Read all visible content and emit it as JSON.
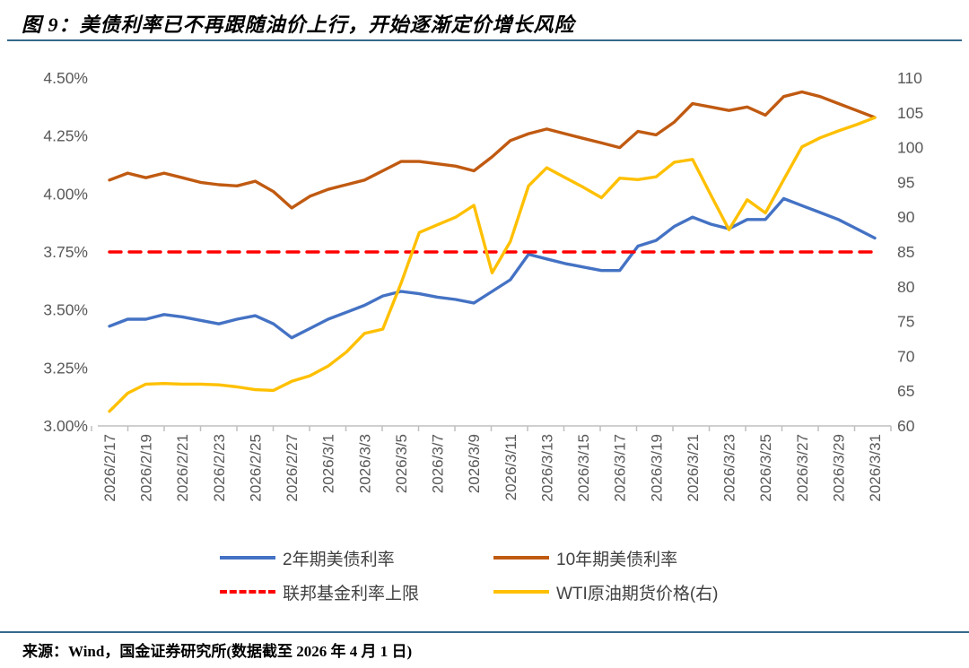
{
  "header": {
    "title": "图 9：美债利率已不再跟随油价上行，开始逐渐定价增长风险"
  },
  "footer": {
    "source": "来源：Wind，国金证券研究所(数据截至 2026 年 4 月 1 日)"
  },
  "colors": {
    "blue": "#4472C4",
    "brown": "#C05A11",
    "yellow": "#FFC000",
    "red": "#FF0000",
    "rule": "#35698C",
    "axis_text": "#595959",
    "axis_line": "#BFBFBF"
  },
  "chart_data": {
    "type": "line",
    "title": "",
    "grid": false,
    "legend_position": "bottom",
    "left_axis": {
      "min": 3.0,
      "max": 4.5,
      "step": 0.25,
      "tick_labels": [
        "3.00%",
        "3.25%",
        "3.50%",
        "3.75%",
        "4.00%",
        "4.25%",
        "4.50%"
      ]
    },
    "right_axis": {
      "min": 60,
      "max": 110,
      "step": 5,
      "tick_labels": [
        "60",
        "65",
        "70",
        "75",
        "80",
        "85",
        "90",
        "95",
        "100",
        "105",
        "110"
      ]
    },
    "x_tick_labels": [
      "2026/2/17",
      "2026/2/19",
      "2026/2/21",
      "2026/2/23",
      "2026/2/25",
      "2026/2/27",
      "2026/3/1",
      "2026/3/3",
      "2026/3/5",
      "2026/3/7",
      "2026/3/9",
      "2026/3/11",
      "2026/3/13",
      "2026/3/15",
      "2026/3/17",
      "2026/3/19",
      "2026/3/21",
      "2026/3/23",
      "2026/3/25",
      "2026/3/27",
      "2026/3/29",
      "2026/3/31"
    ],
    "x": [
      "2026/2/17",
      "2026/2/18",
      "2026/2/19",
      "2026/2/20",
      "2026/2/21",
      "2026/2/22",
      "2026/2/23",
      "2026/2/24",
      "2026/2/25",
      "2026/2/26",
      "2026/2/27",
      "2026/2/28",
      "2026/3/1",
      "2026/3/2",
      "2026/3/3",
      "2026/3/4",
      "2026/3/5",
      "2026/3/6",
      "2026/3/7",
      "2026/3/8",
      "2026/3/9",
      "2026/3/10",
      "2026/3/11",
      "2026/3/12",
      "2026/3/13",
      "2026/3/14",
      "2026/3/15",
      "2026/3/16",
      "2026/3/17",
      "2026/3/18",
      "2026/3/19",
      "2026/3/20",
      "2026/3/21",
      "2026/3/22",
      "2026/3/23",
      "2026/3/24",
      "2026/3/25",
      "2026/3/26",
      "2026/3/27",
      "2026/3/28",
      "2026/3/29",
      "2026/3/30",
      "2026/3/31"
    ],
    "series": [
      {
        "name": "2年期美债利率",
        "axis": "left",
        "color_key": "blue",
        "style": "solid",
        "values": [
          3.43,
          3.46,
          3.46,
          3.48,
          3.47,
          3.455,
          3.44,
          3.46,
          3.475,
          3.44,
          3.38,
          3.42,
          3.46,
          3.49,
          3.52,
          3.56,
          3.58,
          3.57,
          3.555,
          3.545,
          3.53,
          3.58,
          3.63,
          3.74,
          3.72,
          3.7,
          3.685,
          3.67,
          3.67,
          3.775,
          3.8,
          3.86,
          3.9,
          3.87,
          3.85,
          3.89,
          3.89,
          3.98,
          3.95,
          3.92,
          3.89,
          3.85,
          3.81
        ]
      },
      {
        "name": "10年期美债利率",
        "axis": "left",
        "color_key": "brown",
        "style": "solid",
        "values": [
          4.06,
          4.09,
          4.07,
          4.09,
          4.07,
          4.05,
          4.04,
          4.035,
          4.055,
          4.01,
          3.94,
          3.99,
          4.02,
          4.04,
          4.06,
          4.1,
          4.14,
          4.14,
          4.13,
          4.12,
          4.1,
          4.16,
          4.23,
          4.26,
          4.28,
          4.26,
          4.24,
          4.22,
          4.2,
          4.27,
          4.255,
          4.31,
          4.39,
          4.375,
          4.36,
          4.375,
          4.34,
          4.42,
          4.44,
          4.42,
          4.39,
          4.36,
          4.33
        ]
      },
      {
        "name": "联邦基金利率上限",
        "axis": "left",
        "color_key": "red",
        "style": "dashed",
        "values": 3.75
      },
      {
        "name": "WTI原油期货价格(右)",
        "axis": "right",
        "color_key": "yellow",
        "style": "solid",
        "values": [
          62.1,
          64.7,
          66.0,
          66.1,
          66.0,
          66.0,
          65.9,
          65.6,
          65.2,
          65.1,
          66.4,
          67.2,
          68.6,
          70.6,
          73.3,
          73.9,
          80.5,
          87.8,
          88.9,
          90.0,
          91.7,
          82.0,
          86.5,
          94.5,
          97.1,
          95.7,
          94.3,
          92.8,
          95.6,
          95.4,
          95.8,
          97.9,
          98.3,
          93.2,
          88.2,
          92.5,
          90.6,
          95.4,
          100.1,
          101.4,
          102.4,
          103.3,
          104.3
        ]
      }
    ]
  }
}
